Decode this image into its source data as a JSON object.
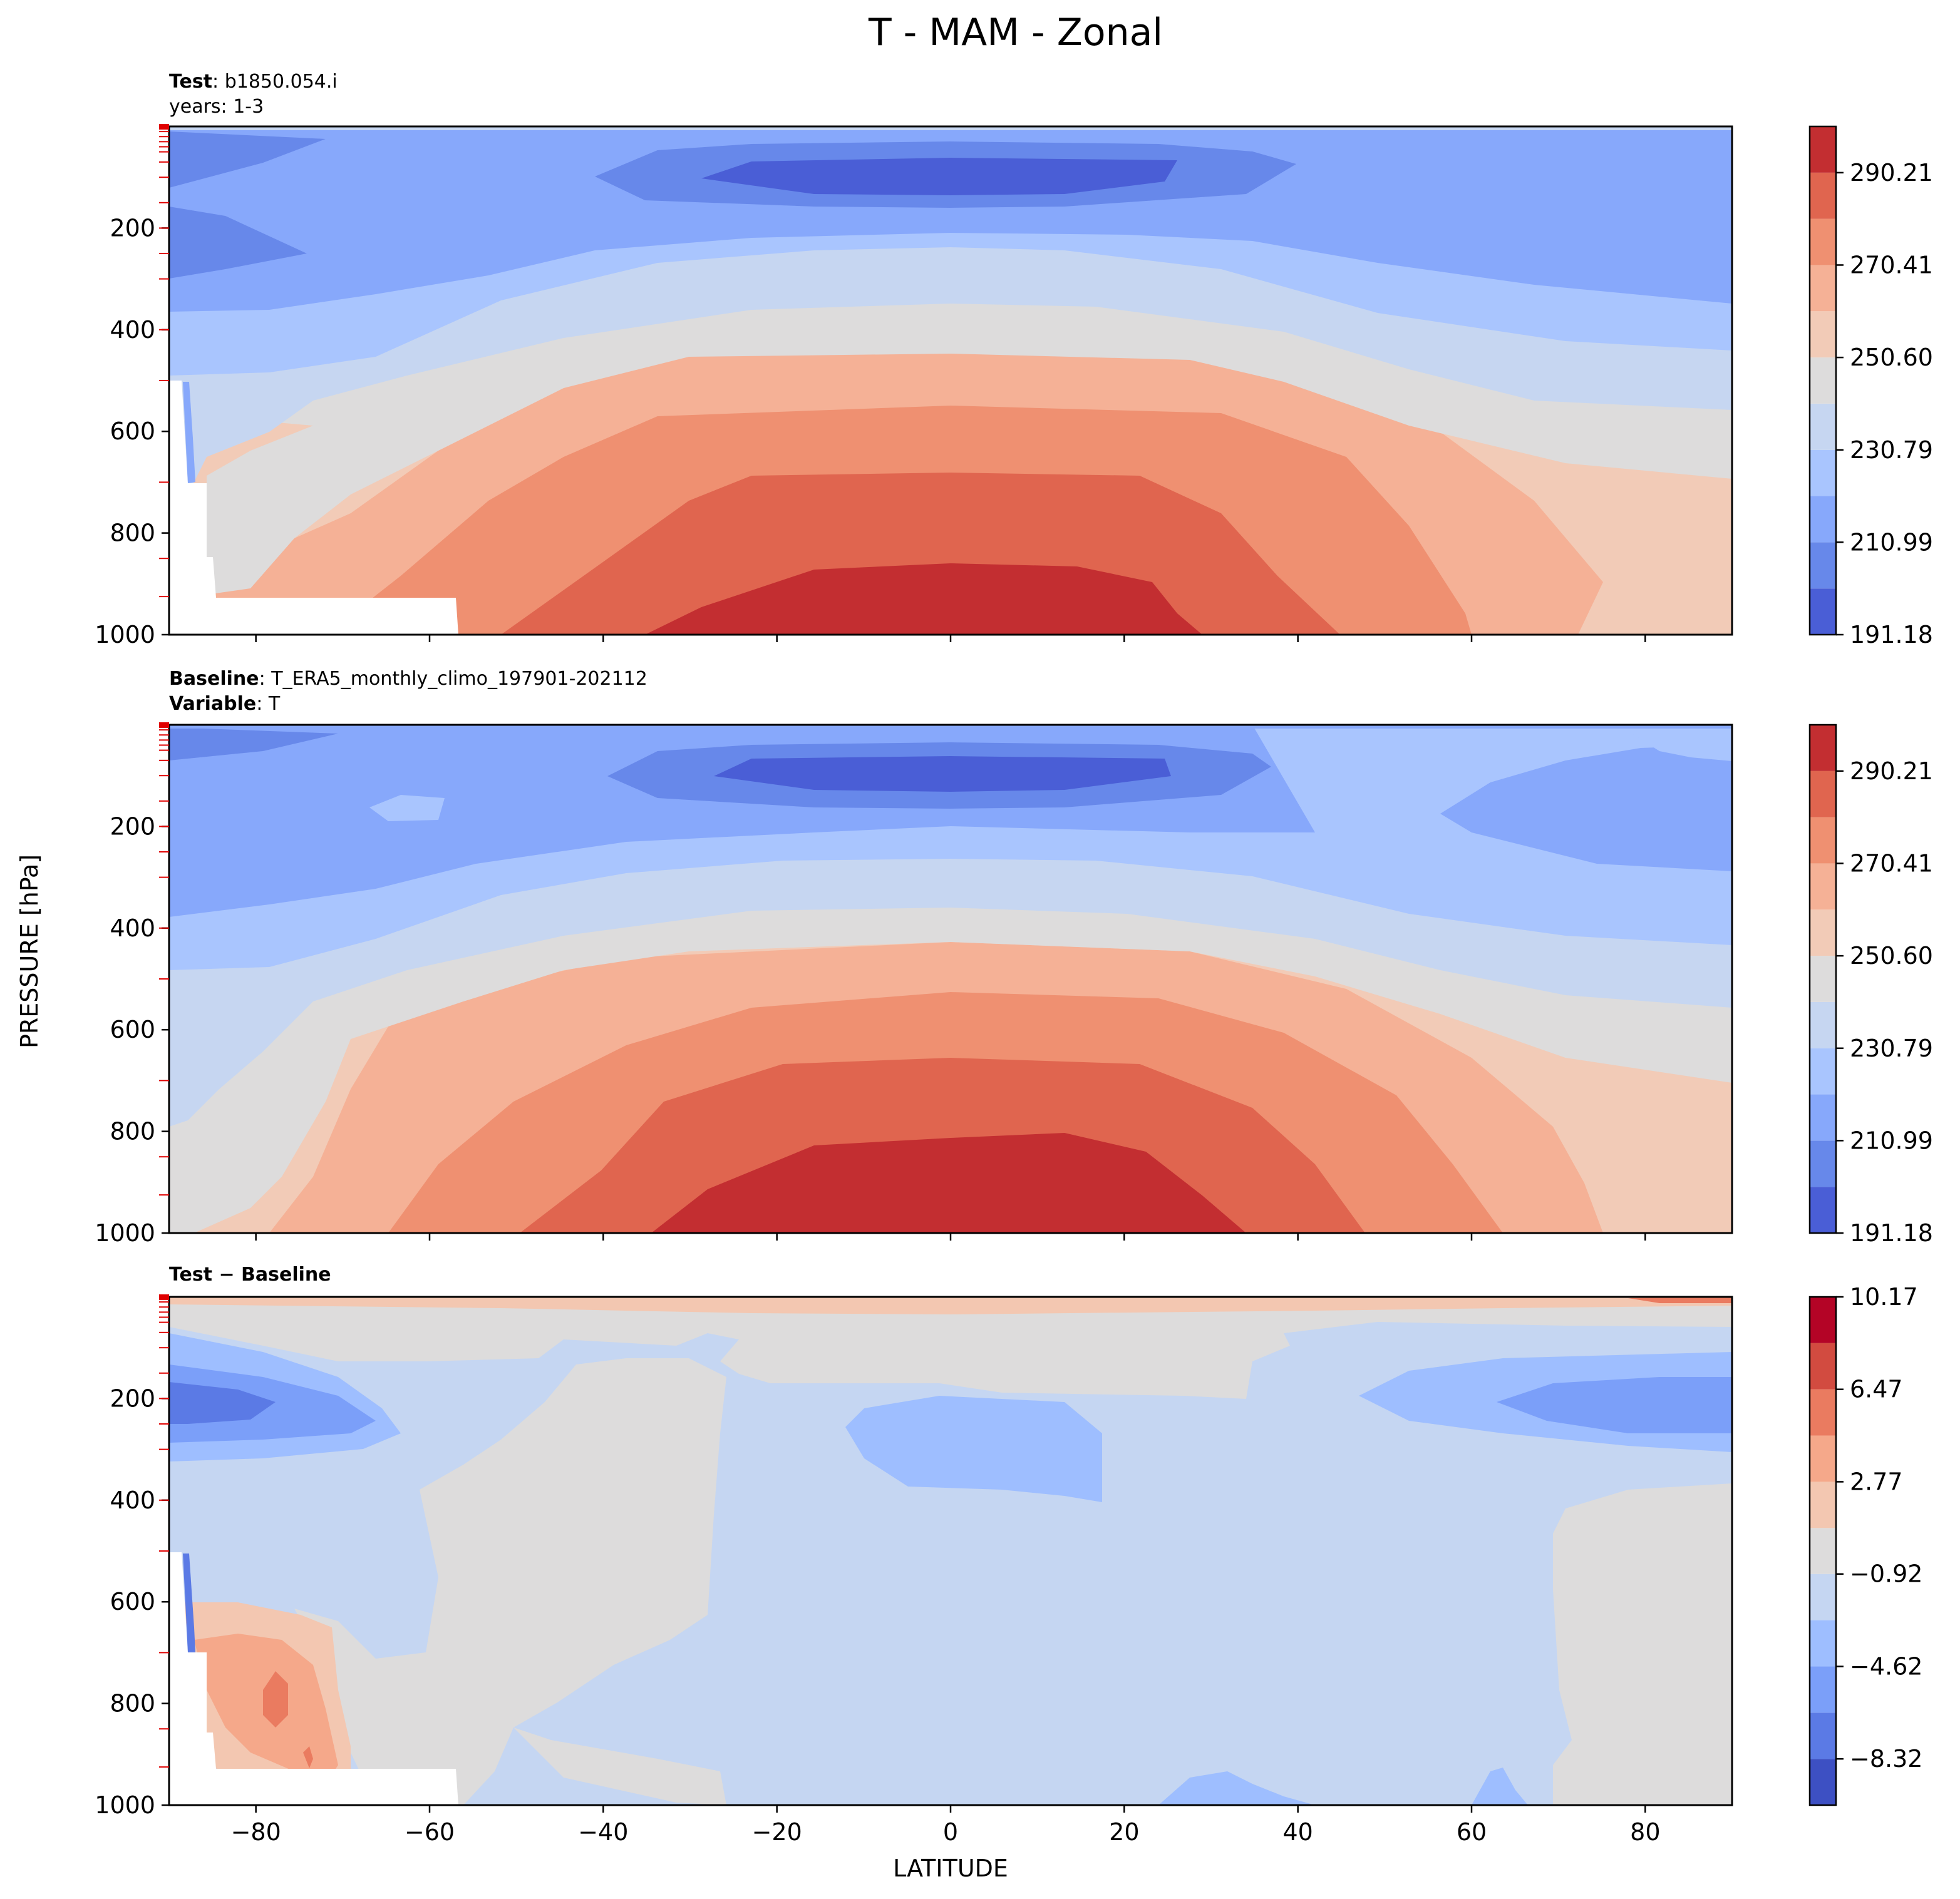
{
  "figure": {
    "title": "T - MAM - Zonal",
    "ylabel": "PRESSURE [hPa]",
    "xlabel": "LATITUDE"
  },
  "panels": {
    "test": {
      "label_bold": "Test",
      "label_sep": ": ",
      "label_value": "b1850.054.i",
      "years_line": "years: 1-3"
    },
    "baseline": {
      "label_bold": "Baseline",
      "label_sep": ": ",
      "label_value": "T_ERA5_monthly_climo_197901-202112",
      "variable_bold": "Variable",
      "variable_sep": ": ",
      "variable_value": "T"
    },
    "diff": {
      "label": "Test − Baseline"
    }
  },
  "chart_data": [
    {
      "type": "heatmap",
      "subtype": "filled-contour",
      "panel": "test",
      "x": "latitude",
      "xlim": [
        -90,
        90
      ],
      "ylim": [
        1000,
        0
      ],
      "xticks": [
        -80,
        -60,
        -40,
        -20,
        0,
        20,
        40,
        60,
        80
      ],
      "yticks": [
        200,
        400,
        600,
        800,
        1000
      ],
      "ytick_labels": [
        "200",
        "400",
        "600",
        "800",
        "1000"
      ],
      "colormap": "coolwarm",
      "levels": [
        191.18,
        201.08,
        210.99,
        220.89,
        230.79,
        240.7,
        250.6,
        260.5,
        270.41,
        280.31,
        290.21,
        300.12
      ],
      "colorbar_ticks": [
        191.18,
        210.99,
        230.79,
        250.6,
        270.41,
        290.21
      ],
      "colorbar_tick_labels": [
        "191.18",
        "210.99",
        "230.79",
        "250.60",
        "270.41",
        "290.21"
      ],
      "colors": [
        "#4a5ed6",
        "#6788ea",
        "#87a8fb",
        "#a9c5fe",
        "#c6d6f1",
        "#dddcdc",
        "#f2cbb7",
        "#f5b196",
        "#ef9071",
        "#e0654f",
        "#c32e31"
      ],
      "description_values": {
        "surface_equator": "≈ 290-300 K",
        "tropopause_cold_core_equator_100hPa": "≈ 191-201 K"
      }
    },
    {
      "type": "heatmap",
      "subtype": "filled-contour",
      "panel": "baseline",
      "x": "latitude",
      "xlim": [
        -90,
        90
      ],
      "ylim": [
        1000,
        0
      ],
      "xticks": [
        -80,
        -60,
        -40,
        -20,
        0,
        20,
        40,
        60,
        80
      ],
      "yticks": [
        200,
        400,
        600,
        800,
        1000
      ],
      "ytick_labels": [
        "200",
        "400",
        "600",
        "800",
        "1000"
      ],
      "colormap": "coolwarm",
      "levels": [
        191.18,
        201.08,
        210.99,
        220.89,
        230.79,
        240.7,
        250.6,
        260.5,
        270.41,
        280.31,
        290.21,
        300.12
      ],
      "colorbar_ticks": [
        191.18,
        210.99,
        230.79,
        250.6,
        270.41,
        290.21
      ],
      "colorbar_tick_labels": [
        "191.18",
        "210.99",
        "230.79",
        "250.60",
        "270.41",
        "290.21"
      ],
      "colors": [
        "#4a5ed6",
        "#6788ea",
        "#87a8fb",
        "#a9c5fe",
        "#c6d6f1",
        "#dddcdc",
        "#f2cbb7",
        "#f5b196",
        "#ef9071",
        "#e0654f",
        "#c32e31"
      ]
    },
    {
      "type": "heatmap",
      "subtype": "filled-contour",
      "panel": "diff",
      "x": "latitude",
      "xlim": [
        -90,
        90
      ],
      "ylim": [
        1000,
        0
      ],
      "xticks": [
        -80,
        -60,
        -40,
        -20,
        0,
        20,
        40,
        60,
        80
      ],
      "xtick_labels": [
        "−80",
        "−60",
        "−40",
        "−20",
        "0",
        "20",
        "40",
        "60",
        "80"
      ],
      "yticks": [
        200,
        400,
        600,
        800,
        1000
      ],
      "ytick_labels": [
        "200",
        "400",
        "600",
        "800",
        "1000"
      ],
      "colormap": "coolwarm",
      "levels": [
        -10.17,
        -8.32,
        -6.47,
        -4.62,
        -2.77,
        -0.92,
        0.92,
        2.77,
        4.62,
        6.47,
        8.32,
        10.17
      ],
      "colorbar_ticks": [
        -8.32,
        -4.62,
        -0.92,
        2.77,
        6.47,
        10.17
      ],
      "colorbar_tick_labels": [
        "−8.32",
        "−4.62",
        "−0.92",
        "2.77",
        "6.47",
        "10.17"
      ],
      "colors": [
        "#3d50c3",
        "#5b7ae5",
        "#7b9ff9",
        "#9ebeff",
        "#c5d6f2",
        "#dddcdc",
        "#f3c7b1",
        "#f5a88a",
        "#ea7b60",
        "#d24b40",
        "#b40426"
      ]
    }
  ]
}
